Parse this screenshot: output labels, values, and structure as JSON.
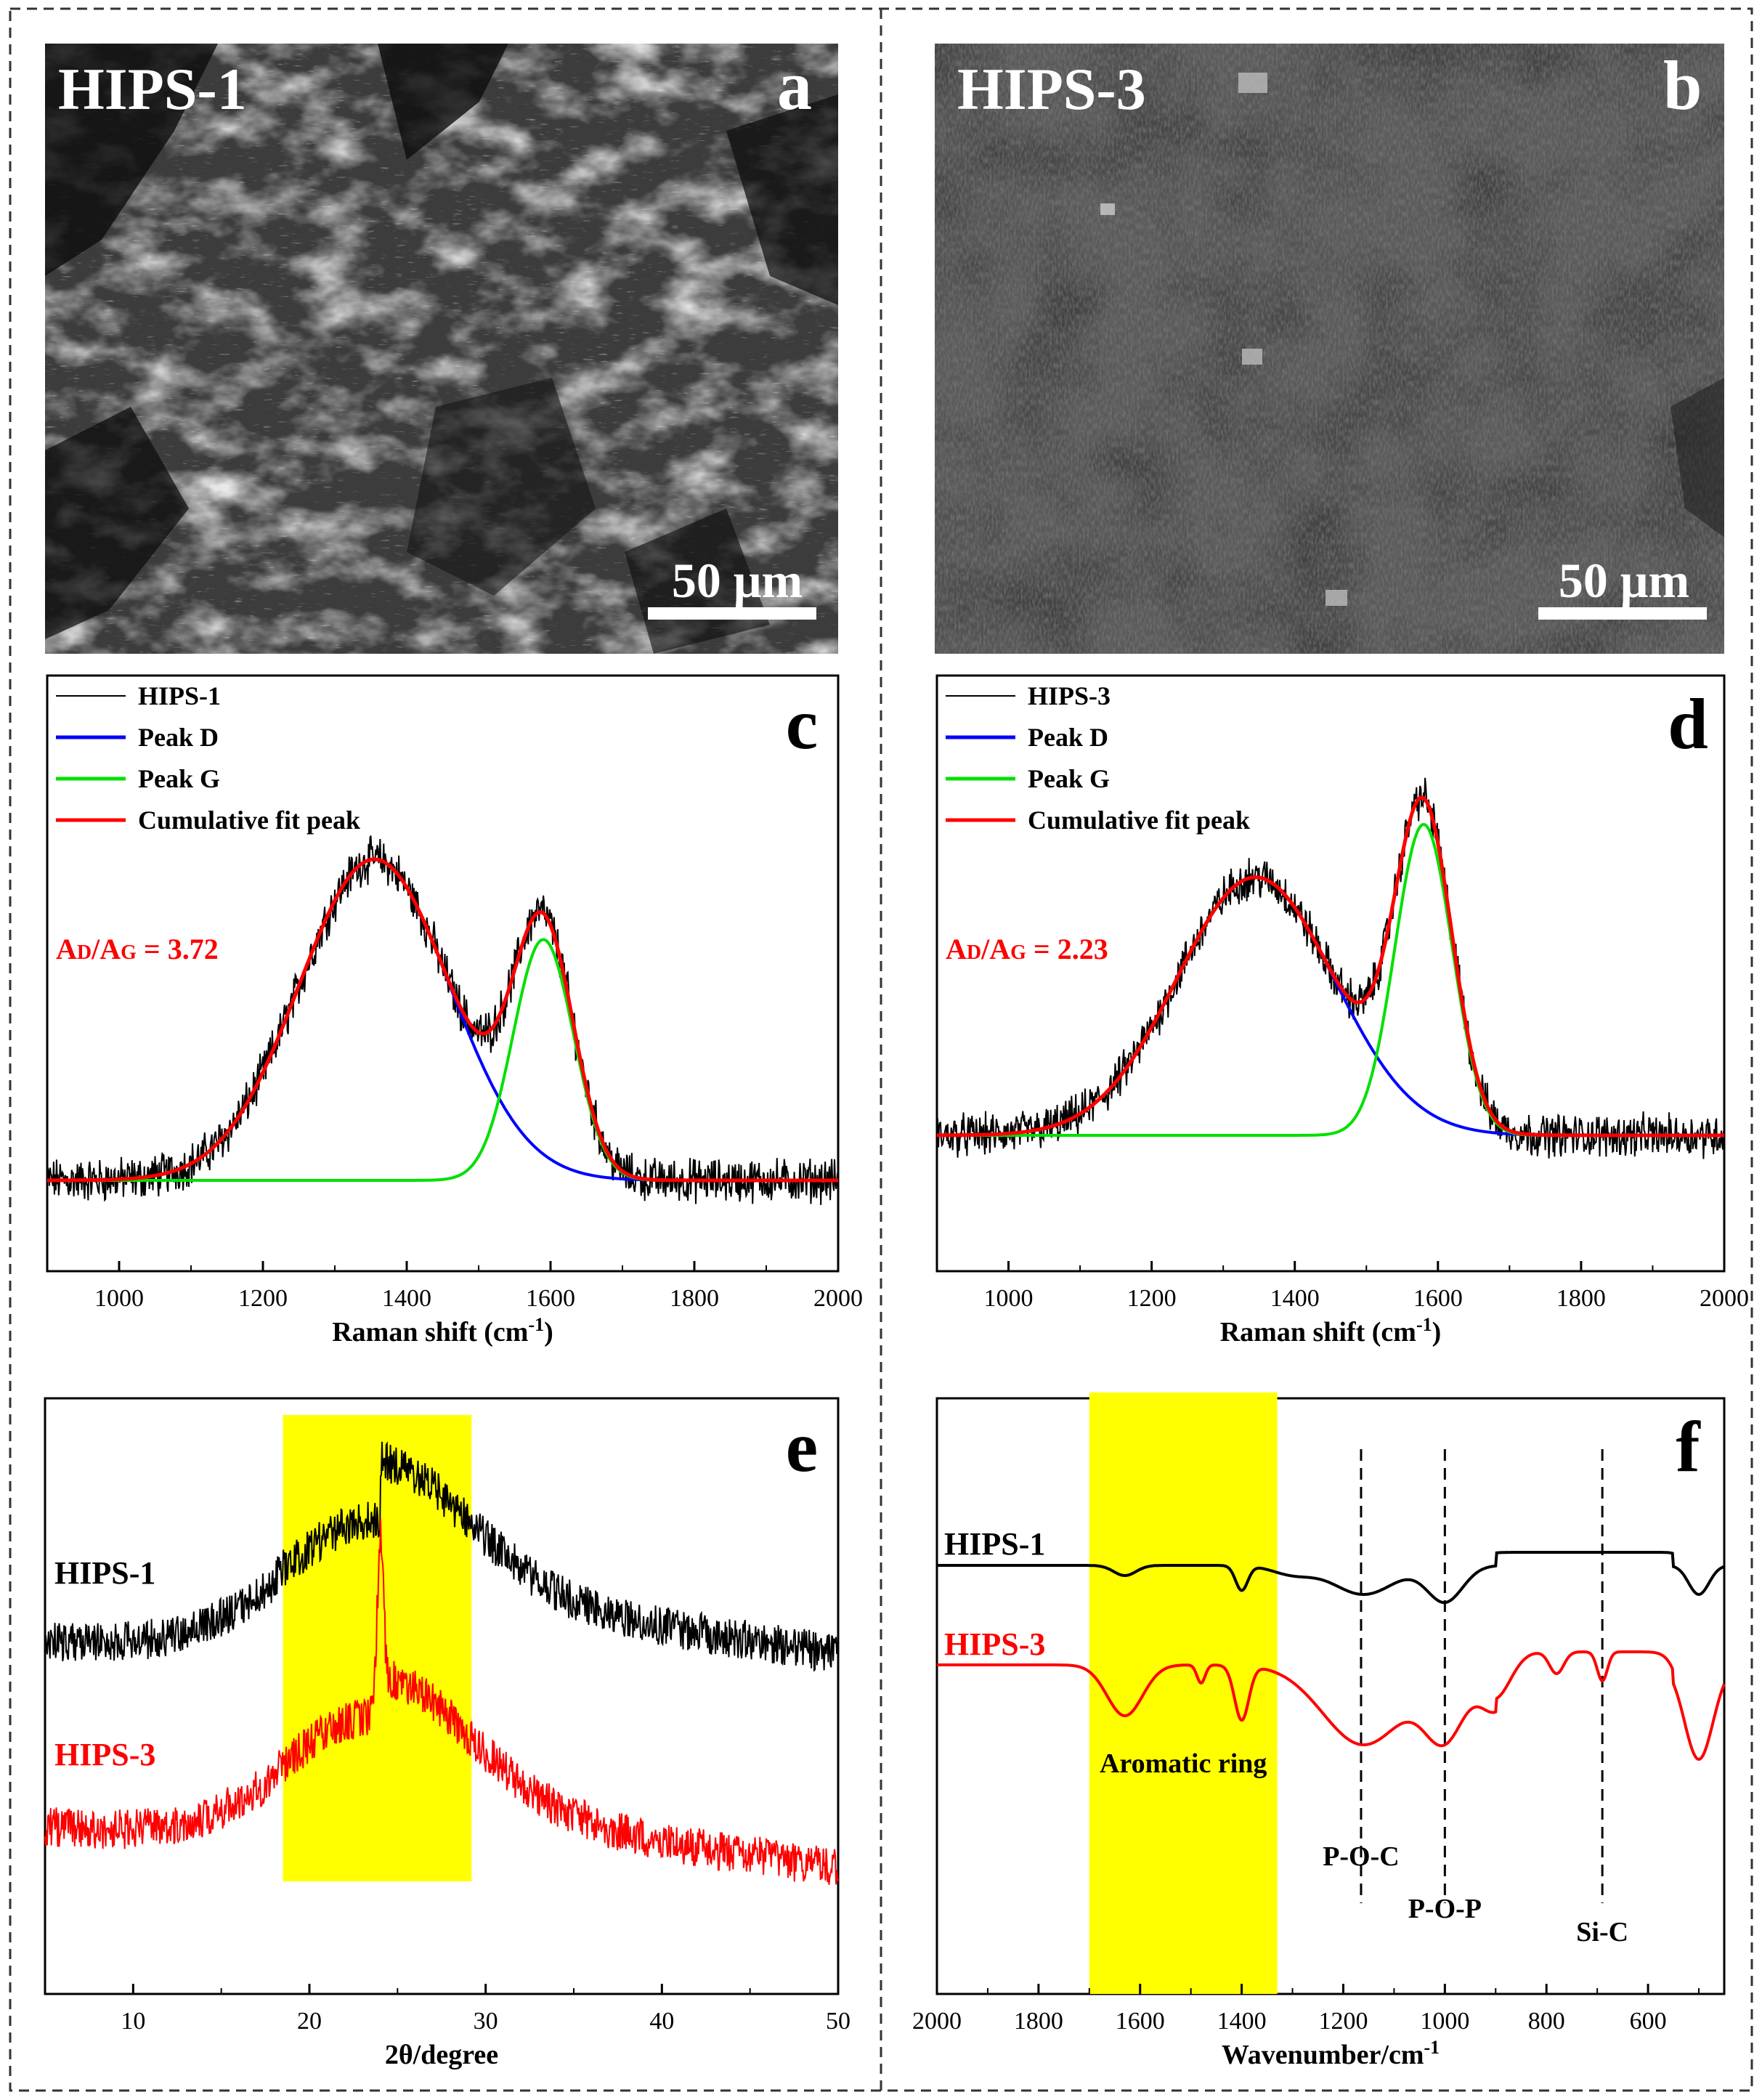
{
  "panels": {
    "a": {
      "letter": "a",
      "sample": "HIPS-1",
      "scalebar": "50 μm"
    },
    "b": {
      "letter": "b",
      "sample": "HIPS-3",
      "scalebar": "50 μm"
    }
  },
  "colors": {
    "data": "#000000",
    "peak_d": "#0000ff",
    "peak_g": "#00e000",
    "fit": "#ff0000",
    "hips3": "#ff0000",
    "highlight": "#ffff00"
  },
  "chart_data": [
    {
      "panel": "c",
      "type": "line",
      "xlabel": "Raman shift (cm",
      "xlabel_sup": "-1",
      "xlabel_end": ")",
      "xlim": [
        900,
        2000
      ],
      "xticks": [
        1000,
        1200,
        1400,
        1600,
        1800,
        2000
      ],
      "legend": [
        "HIPS-1",
        "Peak D",
        "Peak G",
        "Cumulative fit peak"
      ],
      "annotation": {
        "a": "A",
        "d": "D",
        "mid": "/A",
        "g": "G",
        "value": " = 3.72"
      },
      "baseline": 0.0,
      "peaks": [
        {
          "name": "Peak D",
          "center": 1355,
          "sigma": 105,
          "height": 1.0
        },
        {
          "name": "Peak G",
          "center": 1590,
          "sigma": 42,
          "height": 0.75
        }
      ],
      "peak_values": {
        "D_max": 1.0,
        "G_max": 0.75,
        "fit_max_G": 0.97
      }
    },
    {
      "panel": "d",
      "type": "line",
      "xlabel": "Raman shift (cm",
      "xlabel_sup": "-1",
      "xlabel_end": ")",
      "xlim": [
        900,
        2000
      ],
      "xticks": [
        1000,
        1200,
        1400,
        1600,
        1800,
        2000
      ],
      "legend": [
        "HIPS-3",
        "Peak D",
        "Peak G",
        "Cumulative fit peak"
      ],
      "annotation": {
        "a": "A",
        "d": "D",
        "mid": "/A",
        "g": "G",
        "value": " = 2.23"
      },
      "baseline": 0.0,
      "peaks": [
        {
          "name": "Peak D",
          "center": 1345,
          "sigma": 110,
          "height": 0.83
        },
        {
          "name": "Peak G",
          "center": 1580,
          "sigma": 40,
          "height": 1.0
        }
      ]
    },
    {
      "panel": "e",
      "type": "line",
      "xlabel": "2θ/degree",
      "xlim": [
        5,
        50
      ],
      "xticks": [
        10,
        20,
        30,
        40,
        50
      ],
      "highlight": [
        18.5,
        29.2
      ],
      "series": [
        {
          "name": "HIPS-1",
          "broad_center": 24,
          "broad_height": 1.0,
          "sharp_peak": null
        },
        {
          "name": "HIPS-3",
          "broad_center": 24,
          "broad_height": 1.0,
          "sharp_peak": 24.0
        }
      ]
    },
    {
      "panel": "f",
      "type": "line",
      "xlabel": "Wavenumber/cm",
      "xlabel_sup": "-1",
      "xlim": [
        2000,
        450
      ],
      "xticks": [
        2000,
        1800,
        1600,
        1400,
        1200,
        1000,
        800,
        600
      ],
      "highlight": [
        1700,
        1330
      ],
      "band_labels": [
        {
          "text": "Aromatic ring",
          "x": 1515
        },
        {
          "text": "P-O-C",
          "x": 1165
        },
        {
          "text": "P-O-P",
          "x": 1000
        },
        {
          "text": "Si-C",
          "x": 690
        }
      ],
      "band_lines": [
        1165,
        1000,
        690
      ],
      "series": [
        {
          "name": "HIPS-1"
        },
        {
          "name": "HIPS-3"
        }
      ]
    }
  ]
}
